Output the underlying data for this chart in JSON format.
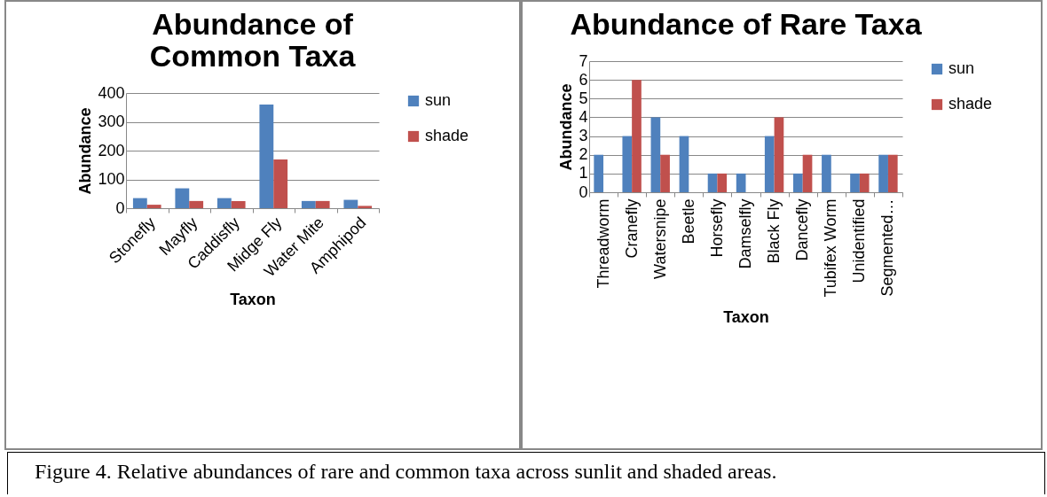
{
  "chart_data": [
    {
      "type": "bar",
      "title": "Abundance of Common Taxa",
      "xlabel": "Taxon",
      "ylabel": "Abundance",
      "categories": [
        "Stonefly",
        "Mayfly",
        "Caddisfly",
        "Midge Fly",
        "Water Mite",
        "Amphipod"
      ],
      "series": [
        {
          "name": "sun",
          "color": "#4f81bd",
          "values": [
            35,
            69,
            35,
            360,
            25,
            29
          ]
        },
        {
          "name": "shade",
          "color": "#c0504d",
          "values": [
            12,
            25,
            25,
            169,
            25,
            8
          ]
        }
      ],
      "ylim": [
        0,
        400
      ],
      "yticks": [
        0,
        100,
        200,
        300,
        400
      ],
      "grid": "y",
      "legend": "right",
      "annotations": [
        "Figure 4. Relative abundances of rare and common taxa across sunlit and shaded areas."
      ]
    },
    {
      "type": "bar",
      "title": "Abundance of Rare Taxa",
      "xlabel": "Taxon",
      "ylabel": "Abundance",
      "categories": [
        "Threadworm",
        "Cranefly",
        "Watersnipe",
        "Beetle",
        "Horsefly",
        "Damselfly",
        "Black Fly",
        "Dancefly",
        "Tubifex Worm",
        "Unidentified",
        "Segmented…"
      ],
      "series": [
        {
          "name": "sun",
          "color": "#4f81bd",
          "values": [
            2,
            3,
            4,
            3,
            1,
            1,
            3,
            1,
            2,
            1,
            2
          ]
        },
        {
          "name": "shade",
          "color": "#c0504d",
          "values": [
            0,
            6,
            2,
            0,
            1,
            0,
            4,
            2,
            0,
            1,
            2
          ]
        }
      ],
      "ylim": [
        0,
        7
      ],
      "yticks": [
        0,
        1,
        2,
        3,
        4,
        5,
        6,
        7
      ],
      "grid": "y",
      "legend": "right"
    }
  ]
}
